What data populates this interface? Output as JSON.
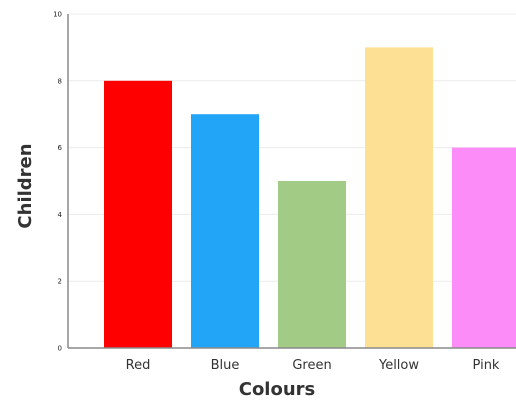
{
  "chart_data": {
    "type": "bar",
    "title": "",
    "xlabel": "Colours",
    "ylabel": "Children",
    "categories": [
      "Red",
      "Blue",
      "Green",
      "Yellow",
      "Pink"
    ],
    "values": [
      8,
      7,
      5,
      9,
      6
    ],
    "colors": [
      "#ff0000",
      "#22a4f7",
      "#a2cb86",
      "#fde093",
      "#fb8cf8"
    ],
    "ylim": [
      0,
      10
    ],
    "yticks": [
      "0",
      "2",
      "4",
      "6",
      "8",
      "10"
    ],
    "grid": true,
    "legend": "none"
  }
}
